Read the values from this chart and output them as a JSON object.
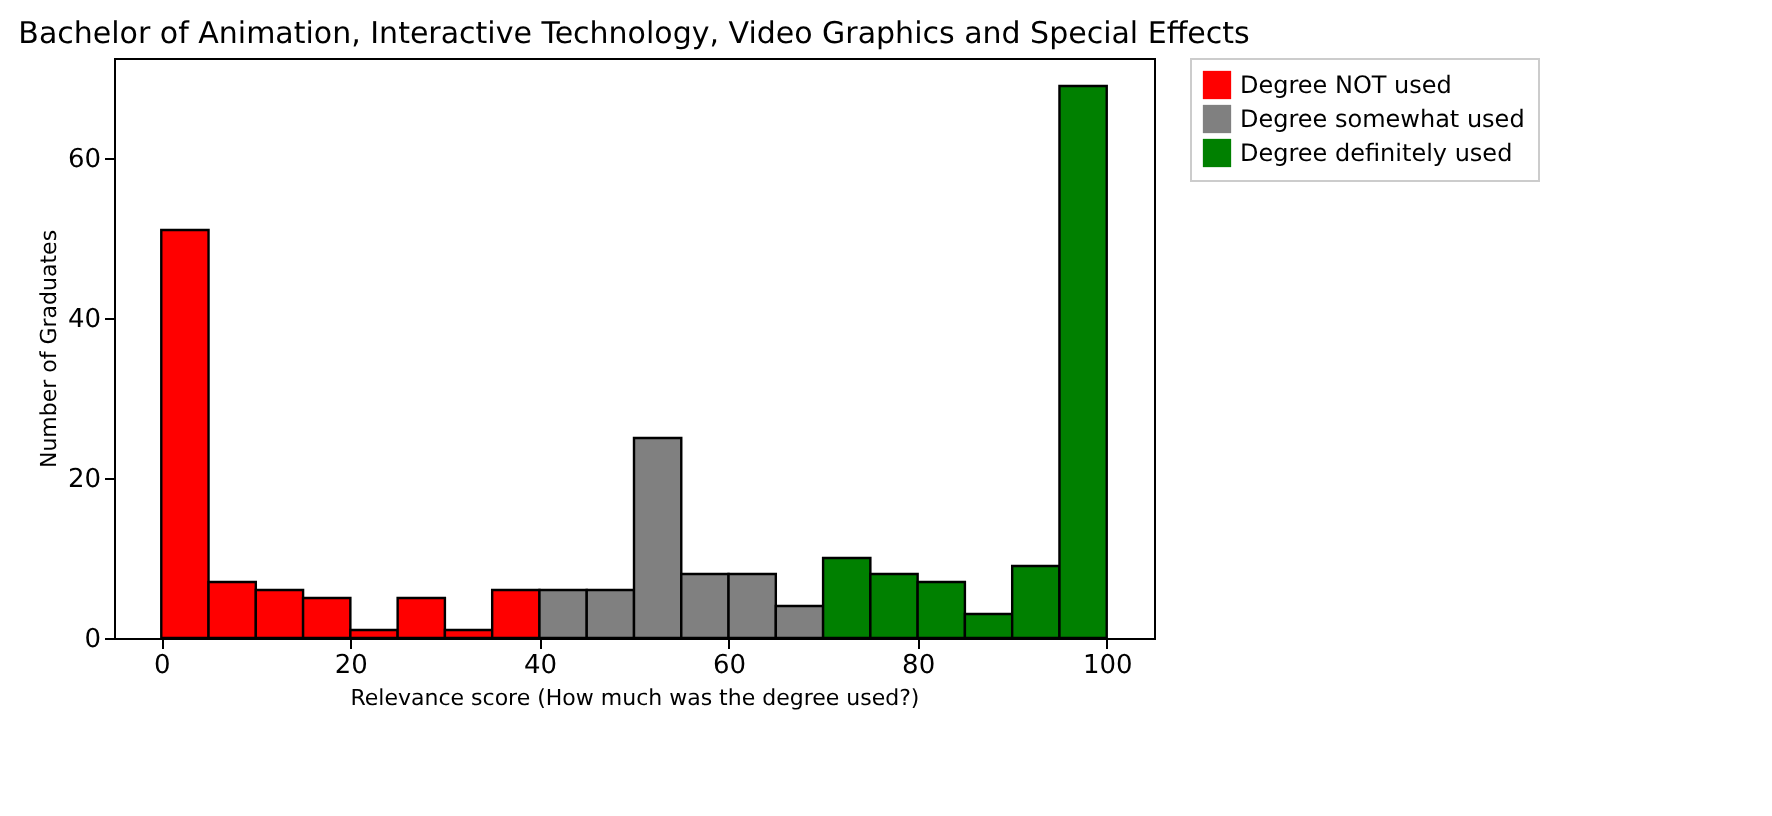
{
  "chart_data": {
    "type": "histogram",
    "title": "Bachelor of Animation, Interactive Technology, Video Graphics and Special Effects",
    "xlabel": "Relevance score (How much was the degree used?)",
    "ylabel": "Number of Graduates",
    "bins": [
      0,
      5,
      10,
      15,
      20,
      25,
      30,
      35,
      40,
      45,
      50,
      55,
      60,
      65,
      70,
      75,
      80,
      85,
      90,
      95,
      100
    ],
    "series": [
      {
        "name": "Degree NOT used",
        "color": "#ff0000",
        "values": [
          51,
          7,
          6,
          5,
          1,
          5,
          1,
          6,
          null,
          null,
          null,
          null,
          null,
          null,
          null,
          null,
          null,
          null,
          null,
          null
        ]
      },
      {
        "name": "Degree somewhat used",
        "color": "#808080",
        "values": [
          null,
          null,
          null,
          null,
          null,
          null,
          null,
          null,
          6,
          6,
          25,
          8,
          8,
          4,
          null,
          null,
          null,
          null,
          null,
          null
        ]
      },
      {
        "name": "Degree definitely used",
        "color": "#008000",
        "values": [
          null,
          null,
          null,
          null,
          null,
          null,
          null,
          null,
          null,
          null,
          null,
          null,
          null,
          null,
          10,
          8,
          7,
          3,
          9,
          69
        ]
      }
    ],
    "xlim": [
      -5,
      105
    ],
    "xticks": [
      0,
      20,
      40,
      60,
      80,
      100
    ],
    "ylim": [
      0,
      72.5
    ],
    "yticks": [
      0,
      20,
      40,
      60
    ],
    "legend": "right"
  }
}
